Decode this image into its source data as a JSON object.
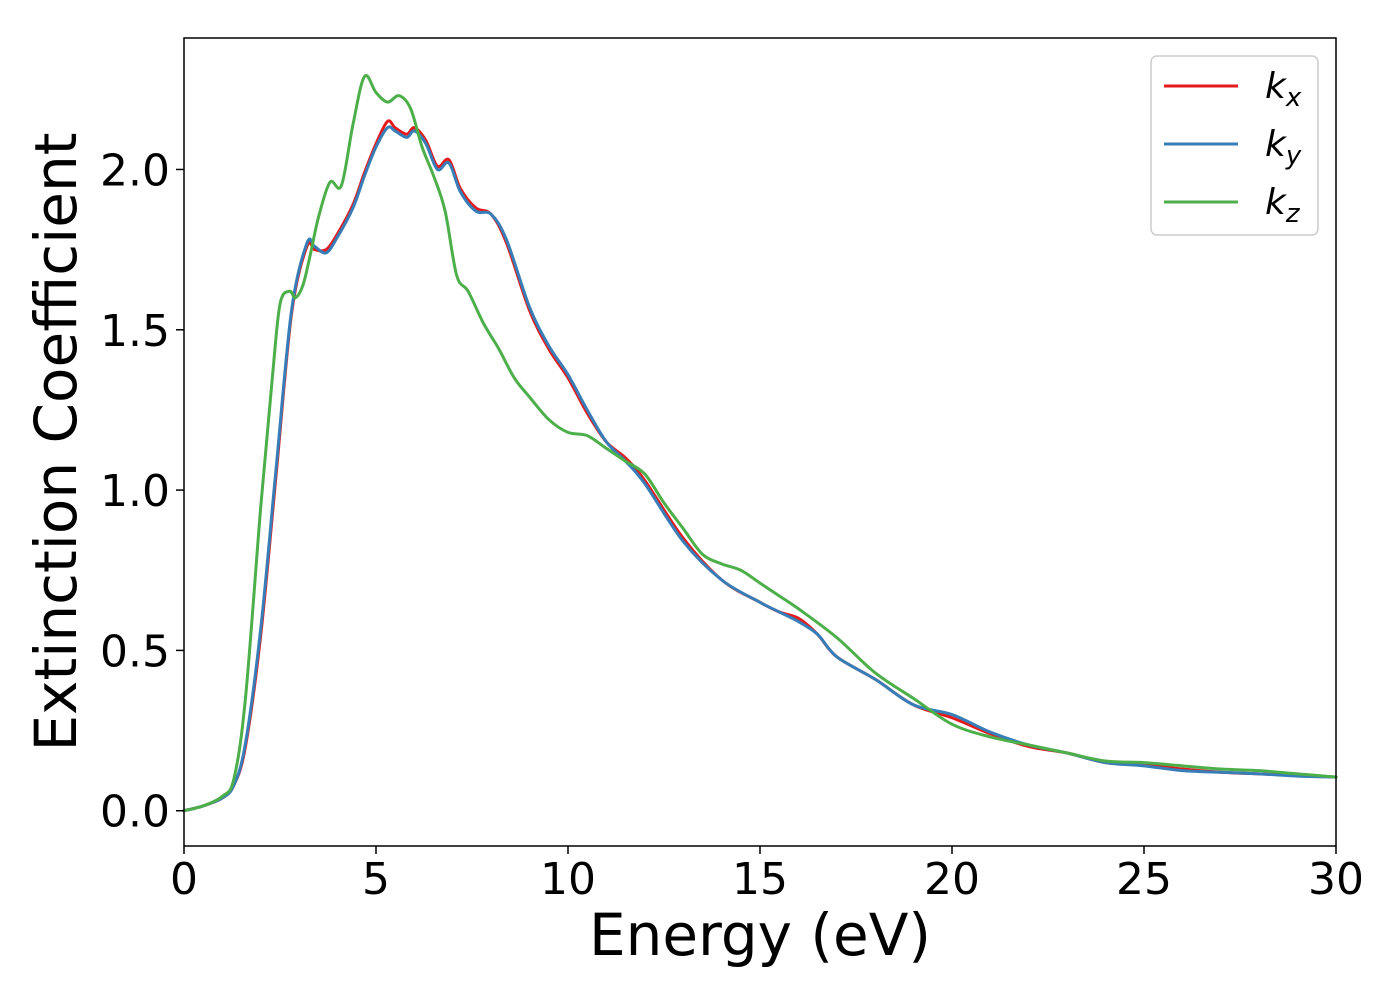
{
  "chart_data": {
    "type": "line",
    "xlabel": "Energy (eV)",
    "ylabel": "Extinction Coefficient",
    "xlim": [
      0,
      30
    ],
    "ylim": [
      -0.11,
      2.41
    ],
    "xticks": [
      "0",
      "5",
      "10",
      "15",
      "20",
      "25",
      "30"
    ],
    "yticks": [
      "0.0",
      "0.5",
      "1.0",
      "1.5",
      "2.0"
    ],
    "grid": false,
    "legend_position": "top-right",
    "series": [
      {
        "name": "k_x",
        "legend_base": "k",
        "legend_sub": "x",
        "color": "#e41a1c",
        "x": [
          0,
          0.5,
          1.0,
          1.3,
          1.6,
          2.0,
          2.4,
          2.8,
          3.2,
          3.4,
          3.7,
          4.0,
          4.4,
          4.7,
          5.0,
          5.3,
          5.5,
          5.8,
          6.0,
          6.3,
          6.6,
          6.9,
          7.2,
          7.6,
          8.0,
          8.4,
          9.0,
          9.5,
          10.0,
          10.5,
          11.0,
          11.5,
          12.0,
          13.0,
          14.0,
          15.0,
          15.5,
          16.0,
          16.5,
          17.0,
          18.0,
          19.0,
          20.0,
          21.0,
          22.0,
          23.0,
          24.0,
          25.0,
          26.0,
          27.0,
          28.0,
          29.0,
          30.0
        ],
        "values": [
          0.0,
          0.015,
          0.04,
          0.08,
          0.2,
          0.55,
          1.05,
          1.55,
          1.76,
          1.75,
          1.75,
          1.8,
          1.89,
          1.99,
          2.08,
          2.15,
          2.13,
          2.11,
          2.13,
          2.09,
          2.01,
          2.03,
          1.94,
          1.88,
          1.86,
          1.77,
          1.56,
          1.44,
          1.35,
          1.24,
          1.15,
          1.1,
          1.03,
          0.85,
          0.72,
          0.65,
          0.62,
          0.6,
          0.55,
          0.48,
          0.41,
          0.33,
          0.29,
          0.24,
          0.2,
          0.18,
          0.15,
          0.145,
          0.13,
          0.12,
          0.115,
          0.11,
          0.105
        ]
      },
      {
        "name": "k_y",
        "legend_base": "k",
        "legend_sub": "y",
        "color": "#377eb8",
        "x": [
          0,
          0.5,
          1.0,
          1.3,
          1.6,
          2.0,
          2.4,
          2.8,
          3.2,
          3.4,
          3.7,
          4.0,
          4.4,
          4.7,
          5.0,
          5.3,
          5.5,
          5.8,
          6.0,
          6.3,
          6.6,
          6.9,
          7.2,
          7.6,
          8.0,
          8.4,
          9.0,
          9.5,
          10.0,
          10.5,
          11.0,
          11.5,
          12.0,
          13.0,
          14.0,
          15.0,
          15.5,
          16.0,
          16.5,
          17.0,
          18.0,
          19.0,
          20.0,
          21.0,
          22.0,
          23.0,
          24.0,
          25.0,
          26.0,
          27.0,
          28.0,
          29.0,
          30.0
        ],
        "values": [
          0.0,
          0.015,
          0.04,
          0.08,
          0.21,
          0.57,
          1.07,
          1.56,
          1.77,
          1.76,
          1.74,
          1.79,
          1.88,
          1.98,
          2.07,
          2.13,
          2.12,
          2.1,
          2.12,
          2.08,
          2.0,
          2.02,
          1.93,
          1.87,
          1.86,
          1.78,
          1.57,
          1.45,
          1.36,
          1.25,
          1.15,
          1.09,
          1.02,
          0.84,
          0.72,
          0.65,
          0.62,
          0.59,
          0.55,
          0.48,
          0.41,
          0.33,
          0.3,
          0.245,
          0.205,
          0.18,
          0.15,
          0.14,
          0.125,
          0.12,
          0.115,
          0.108,
          0.105
        ]
      },
      {
        "name": "k_z",
        "legend_base": "k",
        "legend_sub": "z",
        "color": "#4daf4a",
        "x": [
          0,
          0.5,
          1.0,
          1.3,
          1.6,
          2.0,
          2.3,
          2.5,
          2.75,
          2.9,
          3.1,
          3.3,
          3.5,
          3.8,
          4.1,
          4.4,
          4.7,
          5.0,
          5.3,
          5.6,
          5.9,
          6.2,
          6.5,
          6.8,
          7.1,
          7.4,
          7.8,
          8.2,
          8.6,
          9.0,
          9.5,
          10.0,
          10.5,
          11.0,
          11.5,
          12.0,
          12.5,
          13.0,
          13.5,
          14.0,
          14.5,
          15.0,
          15.5,
          16.0,
          17.0,
          18.0,
          19.0,
          20.0,
          21.0,
          22.0,
          23.0,
          24.0,
          25.0,
          26.0,
          27.0,
          28.0,
          29.0,
          30.0
        ],
        "values": [
          0.0,
          0.015,
          0.045,
          0.1,
          0.35,
          0.95,
          1.35,
          1.58,
          1.62,
          1.6,
          1.64,
          1.74,
          1.85,
          1.96,
          1.95,
          2.14,
          2.29,
          2.24,
          2.21,
          2.23,
          2.19,
          2.07,
          1.98,
          1.87,
          1.67,
          1.62,
          1.52,
          1.44,
          1.35,
          1.29,
          1.22,
          1.18,
          1.17,
          1.13,
          1.09,
          1.05,
          0.96,
          0.88,
          0.8,
          0.77,
          0.75,
          0.71,
          0.67,
          0.63,
          0.54,
          0.43,
          0.35,
          0.27,
          0.23,
          0.205,
          0.18,
          0.155,
          0.15,
          0.14,
          0.13,
          0.125,
          0.115,
          0.105
        ]
      }
    ]
  }
}
